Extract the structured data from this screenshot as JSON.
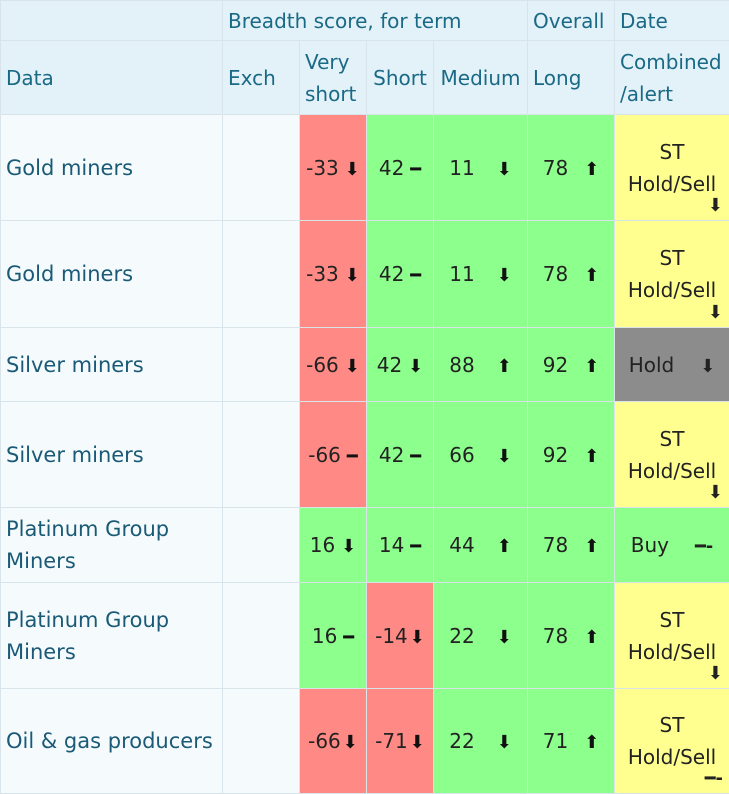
{
  "header": {
    "breadth": "Breadth score, for term",
    "overall": "Overall",
    "date": "Date",
    "data": "Data",
    "exch": "Exch",
    "very_short_1": "Very",
    "very_short_2": "short",
    "short": "Short",
    "medium": "Medium",
    "long": "Long",
    "combined_1": "Combined",
    "combined_2": "/alert"
  },
  "colors": {
    "red": "#ff8a85",
    "green": "#8dff8d",
    "yellow": "#ffff8f",
    "grey": "#8c8c8c"
  },
  "rows": [
    {
      "name": "Gold miners",
      "vs": "-33",
      "vs_arrow": "⬇",
      "s": "42",
      "s_arrow": "━",
      "m": "11",
      "m_arrow": "⬇",
      "l": "78",
      "l_arrow": "⬆",
      "alert_1": "ST",
      "alert_2": "Hold/Sell",
      "alert_arrow": "⬇"
    },
    {
      "name": "Gold miners",
      "vs": "-33",
      "vs_arrow": "⬇",
      "s": "42",
      "s_arrow": "━",
      "m": "11",
      "m_arrow": "⬇",
      "l": "78",
      "l_arrow": "⬆",
      "alert_1": "ST",
      "alert_2": "Hold/Sell",
      "alert_arrow": "⬇"
    },
    {
      "name": "Silver miners",
      "vs": "-66",
      "vs_arrow": "⬇",
      "s": "42",
      "s_arrow": "⬇",
      "m": "88",
      "m_arrow": "⬆",
      "l": "92",
      "l_arrow": "⬆",
      "alert_1": "Hold",
      "alert_arrow": "⬇"
    },
    {
      "name": "Silver miners",
      "vs": "-66",
      "vs_arrow": "━",
      "s": "42",
      "s_arrow": "━",
      "m": "66",
      "m_arrow": "⬇",
      "l": "92",
      "l_arrow": "⬆",
      "alert_1": "ST",
      "alert_2": "Hold/Sell",
      "alert_arrow": "⬇"
    },
    {
      "name_1": "Platinum Group",
      "name_2": "Miners",
      "vs": "16",
      "vs_arrow": "⬇",
      "s": "14",
      "s_arrow": "━",
      "m": "44",
      "m_arrow": "⬆",
      "l": "78",
      "l_arrow": "⬆",
      "alert_1": "Buy",
      "alert_arrow": "━-"
    },
    {
      "name_1": "Platinum Group",
      "name_2": "Miners",
      "vs": "16",
      "vs_arrow": "━",
      "s": "-14",
      "s_arrow": "⬇",
      "m": "22",
      "m_arrow": "⬇",
      "l": "78",
      "l_arrow": "⬆",
      "alert_1": "ST",
      "alert_2": "Hold/Sell",
      "alert_arrow": "⬇"
    },
    {
      "name": "Oil & gas producers",
      "vs": "-66",
      "vs_arrow": "⬇",
      "s": "-71",
      "s_arrow": "⬇",
      "m": "22",
      "m_arrow": "⬇",
      "l": "71",
      "l_arrow": "⬆",
      "alert_1": "ST",
      "alert_2": "Hold/Sell",
      "alert_arrow": "━-"
    }
  ]
}
